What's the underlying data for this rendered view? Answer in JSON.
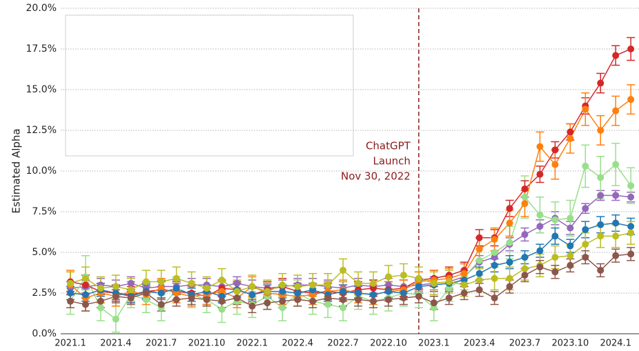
{
  "chart_data": {
    "type": "line",
    "y_label": "Estimated Alpha",
    "annotation": [
      "ChatGPT",
      "Launch",
      "Nov 30, 2022"
    ],
    "annotation_color": "#8b1a1a",
    "vline_index": 23,
    "categories": [
      "2021.1",
      null,
      null,
      "2021.4",
      null,
      null,
      "2021.7",
      null,
      null,
      "2021.10",
      null,
      null,
      "2022.1",
      null,
      null,
      "2022.4",
      null,
      null,
      "2022.7",
      null,
      null,
      "2022.10",
      null,
      null,
      "2023.1",
      null,
      null,
      "2023.4",
      null,
      null,
      "2023.7",
      null,
      null,
      "2023.10",
      null,
      null,
      "2024.1",
      null
    ],
    "ylim": [
      0,
      20
    ],
    "yticks": [
      {
        "value": 0,
        "label": "0.0%"
      },
      {
        "value": 2.5,
        "label": "2.5%"
      },
      {
        "value": 5,
        "label": "5.0%"
      },
      {
        "value": 7.5,
        "label": "7.5%"
      },
      {
        "value": 10,
        "label": "10.0%"
      },
      {
        "value": 12.5,
        "label": "12.5%"
      },
      {
        "value": 15,
        "label": "15.0%"
      },
      {
        "value": 17.5,
        "label": "17.5%"
      },
      {
        "value": 20,
        "label": "20.0%"
      }
    ],
    "grid": true,
    "series": [
      {
        "color": "#9467bd",
        "values": [
          2.8,
          2.9,
          3.0,
          2.9,
          3.1,
          2.8,
          2.9,
          2.9,
          3.0,
          3.0,
          2.9,
          3.1,
          2.9,
          2.8,
          2.9,
          3.0,
          3.0,
          2.9,
          2.8,
          3.0,
          2.9,
          3.0,
          2.9,
          3.0,
          3.1,
          3.2,
          3.5,
          4.4,
          4.7,
          5.5,
          6.1,
          6.6,
          7.1,
          6.5,
          7.7,
          8.5,
          8.5,
          8.4
        ],
        "errors": [
          0.4,
          0.4,
          0.4,
          0.4,
          0.4,
          0.4,
          0.4,
          0.4,
          0.4,
          0.4,
          0.4,
          0.4,
          0.4,
          0.4,
          0.4,
          0.4,
          0.4,
          0.4,
          0.4,
          0.4,
          0.4,
          0.4,
          0.4,
          0.4,
          0.4,
          0.4,
          0.4,
          0.4,
          0.4,
          0.4,
          0.4,
          0.4,
          0.4,
          0.4,
          0.3,
          0.3,
          0.3,
          0.3
        ]
      },
      {
        "color": "#98df8a",
        "values": [
          2.0,
          3.5,
          1.6,
          0.9,
          2.4,
          2.1,
          1.6,
          2.7,
          2.4,
          2.1,
          1.5,
          2.0,
          1.8,
          2.3,
          1.6,
          2.5,
          2.0,
          1.8,
          1.6,
          2.3,
          2.0,
          2.2,
          2.5,
          2.4,
          1.6,
          2.8,
          3.5,
          4.5,
          5.0,
          5.6,
          8.4,
          7.3,
          7.0,
          7.1,
          10.3,
          9.6,
          10.4,
          9.1
        ],
        "errors": [
          0.8,
          1.3,
          0.8,
          0.8,
          0.8,
          0.8,
          0.8,
          0.8,
          0.8,
          0.8,
          0.8,
          0.8,
          0.8,
          0.8,
          0.8,
          0.8,
          0.8,
          0.8,
          0.8,
          0.8,
          0.8,
          0.8,
          0.8,
          0.8,
          0.8,
          0.8,
          0.8,
          0.9,
          0.9,
          1.0,
          1.3,
          1.1,
          1.1,
          1.1,
          1.3,
          1.3,
          1.3,
          1.1
        ]
      },
      {
        "color": "#d62728",
        "values": [
          3.2,
          3.0,
          2.6,
          2.5,
          2.4,
          2.6,
          2.7,
          2.6,
          2.5,
          2.3,
          2.8,
          2.7,
          2.4,
          2.7,
          2.9,
          2.6,
          2.5,
          2.6,
          2.5,
          2.7,
          2.8,
          2.7,
          2.8,
          3.3,
          3.4,
          3.6,
          3.9,
          5.9,
          5.9,
          7.7,
          8.9,
          9.8,
          11.3,
          12.4,
          14.0,
          15.4,
          17.1,
          17.5
        ],
        "errors": [
          0.6,
          0.6,
          0.5,
          0.5,
          0.5,
          0.5,
          0.5,
          0.5,
          0.5,
          0.5,
          0.5,
          0.5,
          0.5,
          0.5,
          0.5,
          0.5,
          0.5,
          0.5,
          0.5,
          0.5,
          0.5,
          0.5,
          0.5,
          0.5,
          0.5,
          0.5,
          0.5,
          0.5,
          0.5,
          0.5,
          0.5,
          0.5,
          0.5,
          0.5,
          0.5,
          0.6,
          0.6,
          0.7
        ]
      },
      {
        "color": "#ff7f0e",
        "values": [
          3.0,
          2.2,
          2.5,
          2.3,
          2.6,
          2.4,
          2.8,
          2.5,
          2.3,
          2.4,
          2.6,
          2.2,
          2.9,
          2.5,
          2.4,
          2.3,
          2.4,
          2.6,
          2.7,
          2.5,
          2.4,
          2.6,
          2.7,
          3.2,
          3.3,
          3.4,
          3.7,
          5.2,
          5.8,
          6.8,
          8.0,
          11.5,
          10.4,
          12.0,
          13.8,
          12.5,
          13.7,
          14.4
        ],
        "errors": [
          0.9,
          0.8,
          0.6,
          0.6,
          0.6,
          0.6,
          0.6,
          0.6,
          0.6,
          0.6,
          0.6,
          0.6,
          0.6,
          0.6,
          0.6,
          0.6,
          0.6,
          0.6,
          0.6,
          0.6,
          0.6,
          0.6,
          0.6,
          0.6,
          0.6,
          0.6,
          0.6,
          0.7,
          0.7,
          0.8,
          0.8,
          0.9,
          0.9,
          0.9,
          1.0,
          0.9,
          0.9,
          0.9
        ]
      },
      {
        "color": "#1f77b4",
        "values": [
          2.5,
          2.4,
          2.7,
          2.5,
          2.3,
          2.6,
          2.5,
          2.8,
          2.4,
          2.6,
          2.3,
          2.7,
          2.4,
          2.6,
          2.6,
          2.5,
          2.7,
          2.4,
          2.6,
          2.5,
          2.4,
          2.6,
          2.5,
          2.9,
          3.0,
          3.1,
          3.3,
          3.7,
          4.2,
          4.4,
          4.7,
          5.1,
          6.0,
          5.4,
          6.4,
          6.7,
          6.8,
          6.6
        ],
        "errors": [
          0.4,
          0.4,
          0.4,
          0.4,
          0.4,
          0.4,
          0.4,
          0.4,
          0.4,
          0.4,
          0.4,
          0.4,
          0.4,
          0.4,
          0.4,
          0.4,
          0.4,
          0.4,
          0.4,
          0.4,
          0.4,
          0.4,
          0.4,
          0.4,
          0.4,
          0.4,
          0.4,
          0.4,
          0.4,
          0.4,
          0.4,
          0.4,
          0.5,
          0.4,
          0.5,
          0.5,
          0.5,
          0.5
        ]
      },
      {
        "color": "#bcbd22",
        "values": [
          3.1,
          3.4,
          2.8,
          2.9,
          2.7,
          3.2,
          3.2,
          3.4,
          3.1,
          2.8,
          3.3,
          2.6,
          2.9,
          2.6,
          3.0,
          2.9,
          3.0,
          3.0,
          3.9,
          3.1,
          3.1,
          3.5,
          3.6,
          3.4,
          3.1,
          3.2,
          3.0,
          3.3,
          3.4,
          3.4,
          4.0,
          4.2,
          4.7,
          4.8,
          5.5,
          6.0,
          6.0,
          6.2
        ],
        "errors": [
          0.7,
          0.7,
          0.7,
          0.7,
          0.7,
          0.7,
          0.7,
          0.7,
          0.7,
          0.7,
          0.7,
          0.7,
          0.7,
          0.7,
          0.7,
          0.7,
          0.7,
          0.7,
          0.7,
          0.7,
          0.7,
          0.7,
          0.7,
          0.7,
          0.7,
          0.7,
          0.7,
          0.7,
          0.7,
          0.7,
          0.7,
          0.7,
          0.7,
          0.7,
          0.7,
          0.7,
          0.7,
          0.7
        ]
      },
      {
        "color": "#8c564b",
        "values": [
          2.0,
          1.8,
          2.0,
          2.3,
          2.2,
          2.5,
          1.8,
          2.1,
          2.2,
          2.1,
          2.0,
          2.2,
          1.7,
          1.9,
          2.0,
          2.1,
          2.0,
          2.2,
          2.1,
          2.1,
          2.0,
          2.1,
          2.2,
          2.3,
          1.9,
          2.2,
          2.5,
          2.7,
          2.2,
          2.9,
          3.6,
          4.1,
          3.8,
          4.2,
          4.7,
          3.9,
          4.8,
          4.9
        ],
        "errors": [
          0.4,
          0.4,
          0.4,
          0.4,
          0.4,
          0.4,
          0.4,
          0.4,
          0.4,
          0.4,
          0.4,
          0.4,
          0.4,
          0.4,
          0.4,
          0.4,
          0.4,
          0.4,
          0.4,
          0.4,
          0.4,
          0.4,
          0.4,
          0.4,
          0.4,
          0.4,
          0.4,
          0.4,
          0.4,
          0.4,
          0.4,
          0.4,
          0.4,
          0.4,
          0.4,
          0.4,
          0.4,
          0.4
        ]
      }
    ]
  }
}
